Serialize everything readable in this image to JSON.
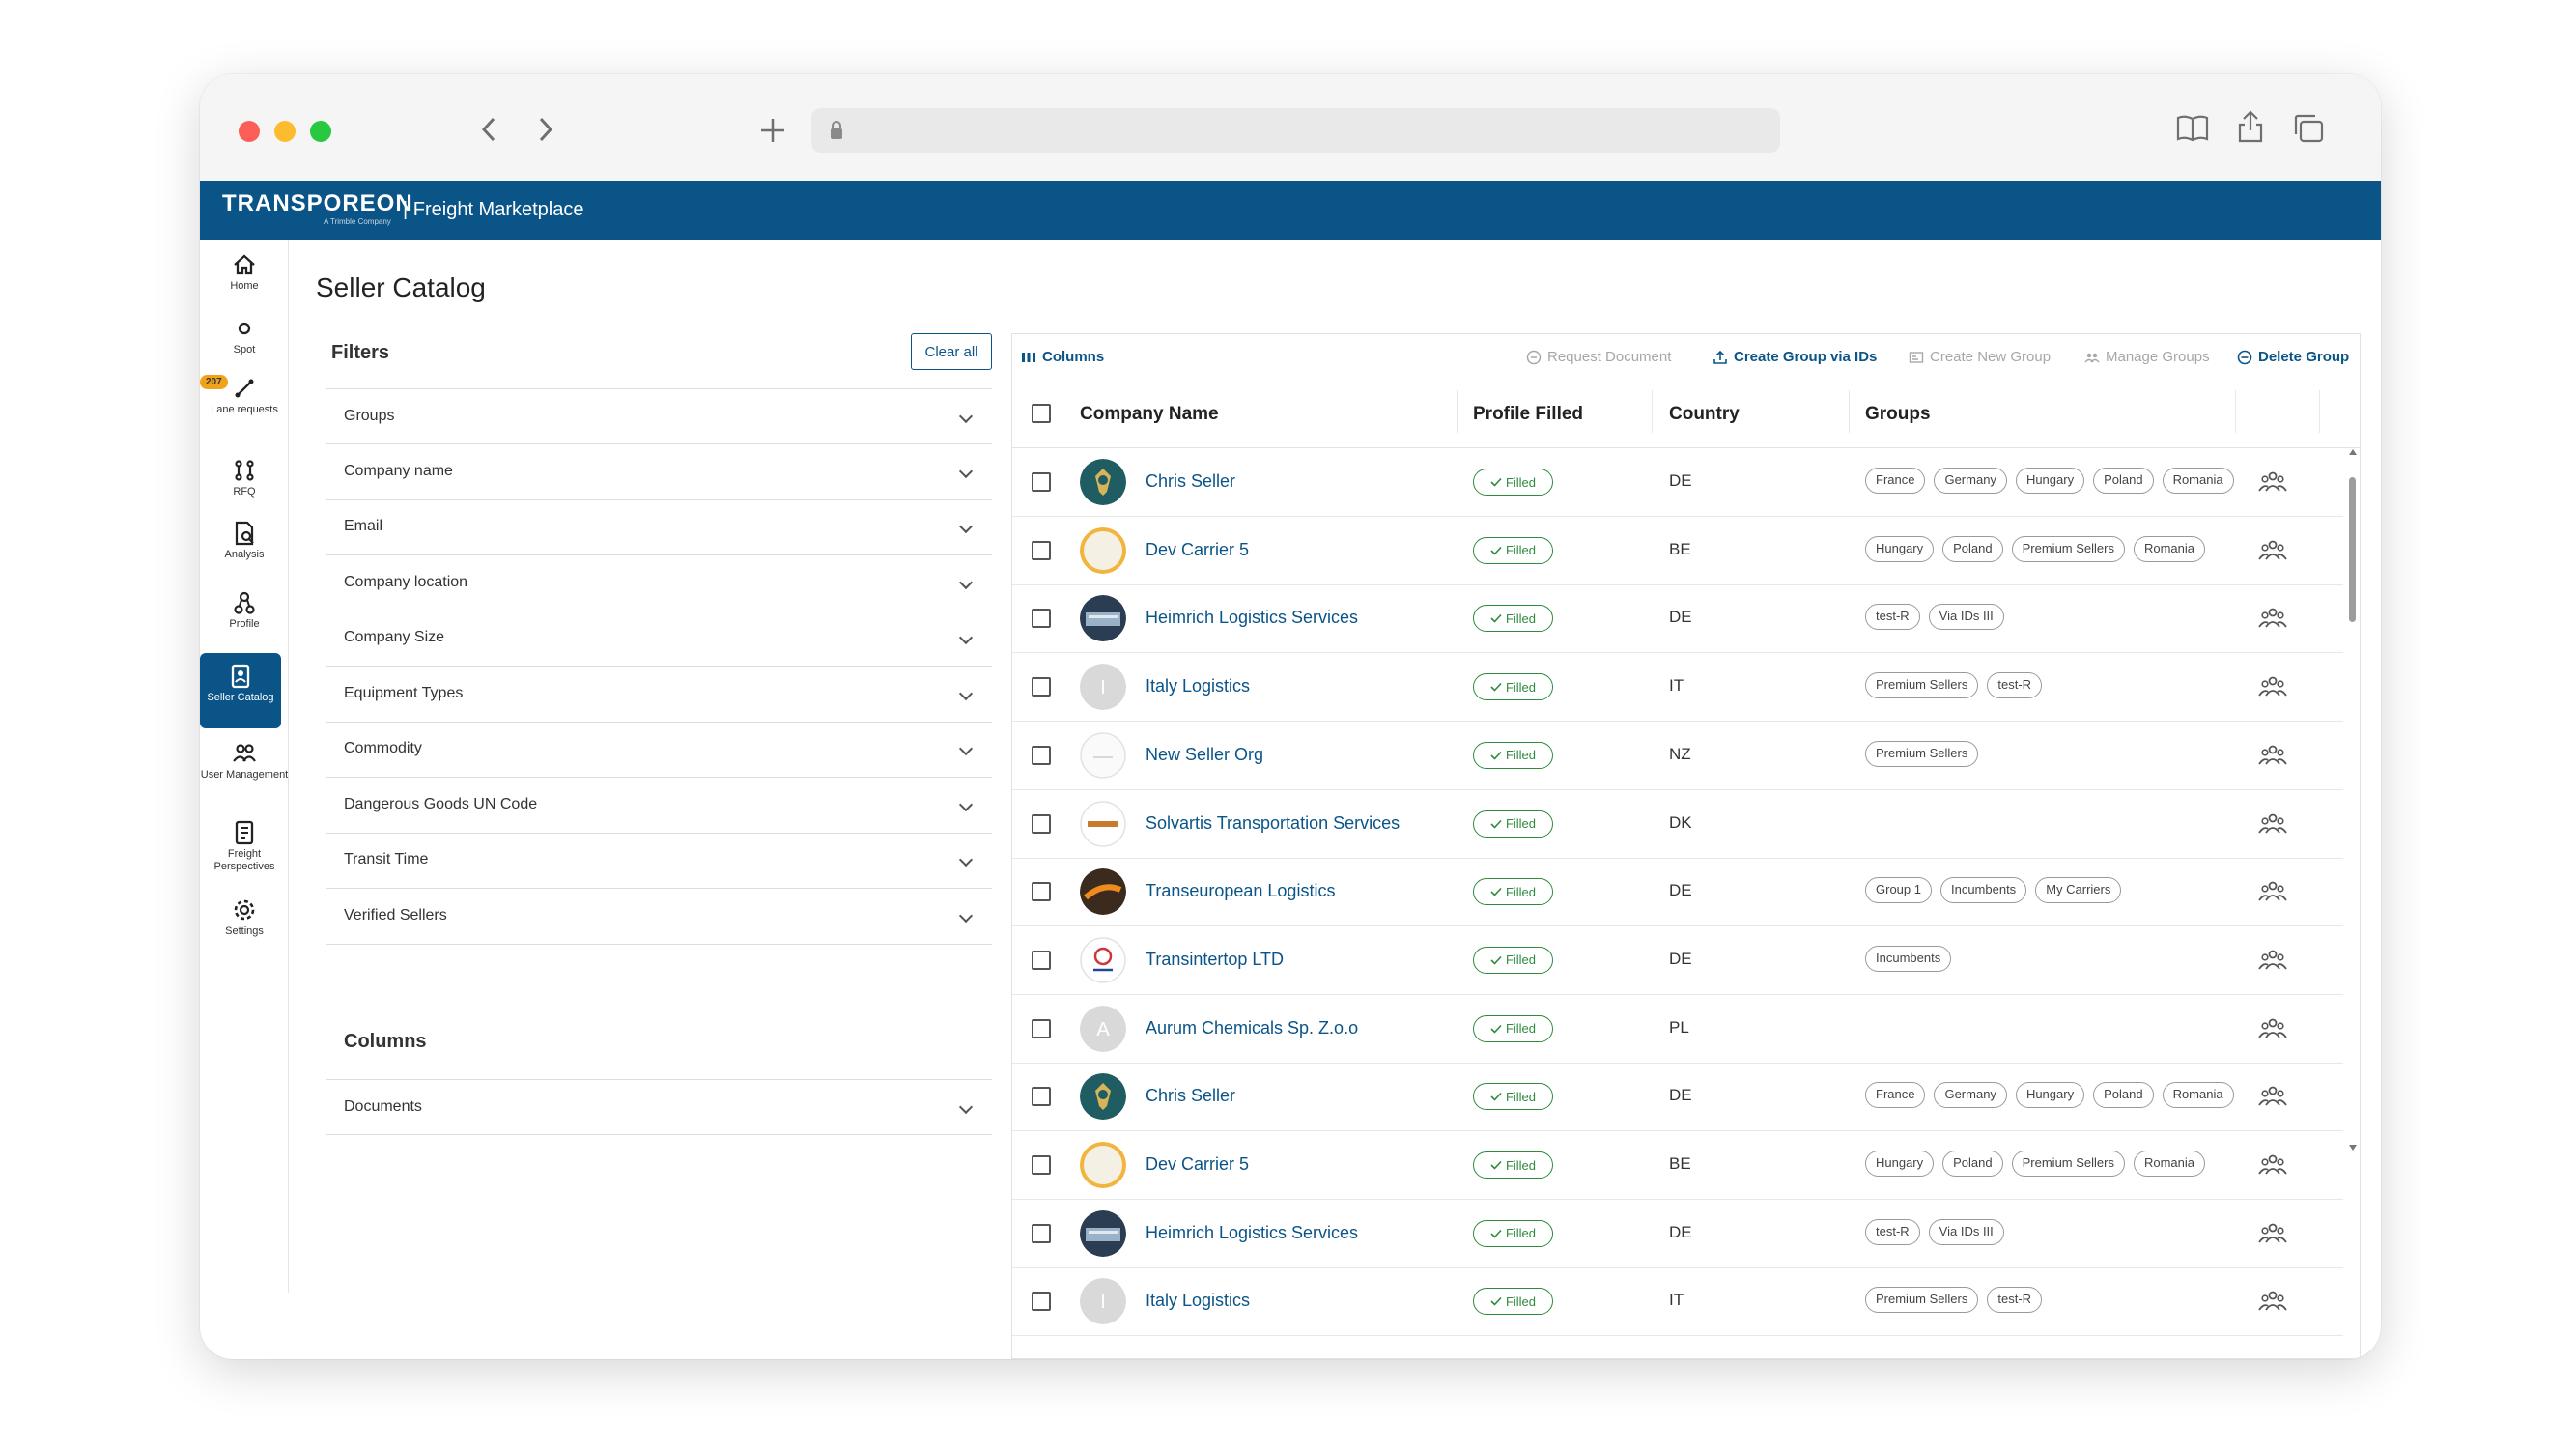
{
  "app": {
    "brand": "TRANSPOREON",
    "brand_sub": "A Trimble Company",
    "product": "| Freight Marketplace",
    "page_title": "Seller Catalog"
  },
  "nav": {
    "lane_badge": "207",
    "items": [
      {
        "label": "Home",
        "icon": "home-icon"
      },
      {
        "label": "Spot",
        "icon": "spot-icon"
      },
      {
        "label": "Lane requests",
        "icon": "lane-requests-icon"
      },
      {
        "label": "RFQ",
        "icon": "rfq-icon"
      },
      {
        "label": "Analysis",
        "icon": "analysis-icon"
      },
      {
        "label": "Profile",
        "icon": "profile-icon"
      },
      {
        "label": "Seller Catalog",
        "icon": "seller-catalog-icon"
      },
      {
        "label": "User Management",
        "icon": "user-management-icon"
      },
      {
        "label": "Freight Perspectives",
        "icon": "freight-perspectives-icon"
      },
      {
        "label": "Settings",
        "icon": "settings-icon"
      }
    ]
  },
  "filters": {
    "title": "Filters",
    "clear_all": "Clear all",
    "items": [
      "Groups",
      "Company name",
      "Email",
      "Company location",
      "Company Size",
      "Equipment Types",
      "Commodity",
      "Dangerous Goods UN Code",
      "Transit Time",
      "Verified Sellers"
    ],
    "columns_title": "Columns",
    "columns_items": [
      "Documents"
    ]
  },
  "toolbar": {
    "columns": "Columns",
    "request_document": "Request Document",
    "create_group_via_ids": "Create Group via IDs",
    "create_new_group": "Create New Group",
    "manage_groups": "Manage Groups",
    "delete_group": "Delete Group"
  },
  "table": {
    "headers": {
      "company": "Company Name",
      "profile": "Profile Filled",
      "country": "Country",
      "groups": "Groups"
    },
    "filled_label": "Filled",
    "rows": [
      {
        "name": "Chris Seller",
        "country": "DE",
        "groups": [
          "France",
          "Germany",
          "Hungary",
          "Poland",
          "Romania"
        ]
      },
      {
        "name": "Dev Carrier 5",
        "country": "BE",
        "groups": [
          "Hungary",
          "Poland",
          "Premium Sellers",
          "Romania"
        ]
      },
      {
        "name": "Heimrich Logistics Services",
        "country": "DE",
        "groups": [
          "test-R",
          "Via IDs III"
        ]
      },
      {
        "name": "Italy Logistics",
        "country": "IT",
        "groups": [
          "Premium Sellers",
          "test-R"
        ]
      },
      {
        "name": "New Seller Org",
        "country": "NZ",
        "groups": [
          "Premium Sellers"
        ]
      },
      {
        "name": "Solvartis Transportation Services",
        "country": "DK",
        "groups": []
      },
      {
        "name": "Transeuropean Logistics",
        "country": "DE",
        "groups": [
          "Group 1",
          "Incumbents",
          "My Carriers"
        ]
      },
      {
        "name": "Transintertop LTD",
        "country": "DE",
        "groups": [
          "Incumbents"
        ]
      },
      {
        "name": "Aurum Chemicals Sp. Z.o.o",
        "country": "PL",
        "groups": []
      },
      {
        "name": "Chris Seller",
        "country": "DE",
        "groups": [
          "France",
          "Germany",
          "Hungary",
          "Poland",
          "Romania"
        ]
      },
      {
        "name": "Dev Carrier 5",
        "country": "BE",
        "groups": [
          "Hungary",
          "Poland",
          "Premium Sellers",
          "Romania"
        ]
      },
      {
        "name": "Heimrich Logistics Services",
        "country": "DE",
        "groups": [
          "test-R",
          "Via IDs III"
        ]
      },
      {
        "name": "Italy Logistics",
        "country": "IT",
        "groups": [
          "Premium Sellers",
          "test-R"
        ]
      }
    ]
  },
  "colors": {
    "primary": "#0a5488",
    "filled": "#2e8b3e",
    "badge": "#f0a21a"
  }
}
